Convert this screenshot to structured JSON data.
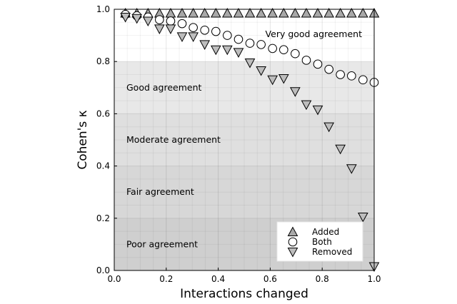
{
  "chart_data": {
    "type": "scatter",
    "xlabel": "Interactions changed",
    "ylabel": "Cohen's κ",
    "xlim": [
      0,
      1
    ],
    "ylim": [
      0,
      1
    ],
    "x_ticks": [
      "0.0",
      "0.2",
      "0.4",
      "0.6",
      "0.8",
      "1.0"
    ],
    "y_ticks": [
      "0.0",
      "0.2",
      "0.4",
      "0.6",
      "0.8",
      "1.0"
    ],
    "grid": true,
    "legend_position": "bottom-right",
    "bands": [
      {
        "label": "Poor agreement",
        "from": 0.0,
        "to": 0.2,
        "color": "#cfcfcf"
      },
      {
        "label": "Fair agreement",
        "from": 0.2,
        "to": 0.4,
        "color": "#d7d7d7"
      },
      {
        "label": "Moderate agreement",
        "from": 0.4,
        "to": 0.6,
        "color": "#dfdfdf"
      },
      {
        "label": "Good agreement",
        "from": 0.6,
        "to": 0.8,
        "color": "#e8e8e8"
      },
      {
        "label": "Very good agreement",
        "from": 0.8,
        "to": 1.0,
        "color": "#ffffff"
      }
    ],
    "series": [
      {
        "name": "Added",
        "marker": "triangle-up",
        "color": "#a8a8a8",
        "points": [
          [
            0.043,
            0.985
          ],
          [
            0.087,
            0.985
          ],
          [
            0.13,
            0.985
          ],
          [
            0.174,
            0.985
          ],
          [
            0.217,
            0.985
          ],
          [
            0.261,
            0.985
          ],
          [
            0.304,
            0.985
          ],
          [
            0.348,
            0.985
          ],
          [
            0.391,
            0.985
          ],
          [
            0.435,
            0.985
          ],
          [
            0.478,
            0.985
          ],
          [
            0.522,
            0.985
          ],
          [
            0.565,
            0.985
          ],
          [
            0.609,
            0.985
          ],
          [
            0.652,
            0.985
          ],
          [
            0.696,
            0.985
          ],
          [
            0.739,
            0.985
          ],
          [
            0.783,
            0.985
          ],
          [
            0.826,
            0.985
          ],
          [
            0.87,
            0.985
          ],
          [
            0.913,
            0.985
          ],
          [
            0.957,
            0.985
          ],
          [
            1.0,
            0.985
          ]
        ]
      },
      {
        "name": "Both",
        "marker": "circle",
        "color": "#ffffff",
        "points": [
          [
            0.043,
            0.98
          ],
          [
            0.087,
            0.975
          ],
          [
            0.13,
            0.97
          ],
          [
            0.174,
            0.96
          ],
          [
            0.217,
            0.955
          ],
          [
            0.261,
            0.945
          ],
          [
            0.304,
            0.93
          ],
          [
            0.348,
            0.92
          ],
          [
            0.391,
            0.915
          ],
          [
            0.435,
            0.9
          ],
          [
            0.478,
            0.885
          ],
          [
            0.522,
            0.87
          ],
          [
            0.565,
            0.865
          ],
          [
            0.609,
            0.85
          ],
          [
            0.652,
            0.845
          ],
          [
            0.696,
            0.83
          ],
          [
            0.739,
            0.805
          ],
          [
            0.783,
            0.79
          ],
          [
            0.826,
            0.77
          ],
          [
            0.87,
            0.75
          ],
          [
            0.913,
            0.745
          ],
          [
            0.957,
            0.73
          ],
          [
            1.0,
            0.72
          ]
        ]
      },
      {
        "name": "Removed",
        "marker": "triangle-down",
        "color": "#bdbdbd",
        "points": [
          [
            0.043,
            0.97
          ],
          [
            0.087,
            0.965
          ],
          [
            0.13,
            0.955
          ],
          [
            0.174,
            0.925
          ],
          [
            0.217,
            0.925
          ],
          [
            0.261,
            0.895
          ],
          [
            0.304,
            0.895
          ],
          [
            0.348,
            0.865
          ],
          [
            0.391,
            0.845
          ],
          [
            0.435,
            0.845
          ],
          [
            0.478,
            0.835
          ],
          [
            0.522,
            0.795
          ],
          [
            0.565,
            0.765
          ],
          [
            0.609,
            0.73
          ],
          [
            0.652,
            0.735
          ],
          [
            0.696,
            0.685
          ],
          [
            0.739,
            0.635
          ],
          [
            0.783,
            0.615
          ],
          [
            0.826,
            0.55
          ],
          [
            0.87,
            0.465
          ],
          [
            0.913,
            0.39
          ],
          [
            0.957,
            0.205
          ],
          [
            1.0,
            0.015
          ]
        ]
      }
    ]
  }
}
